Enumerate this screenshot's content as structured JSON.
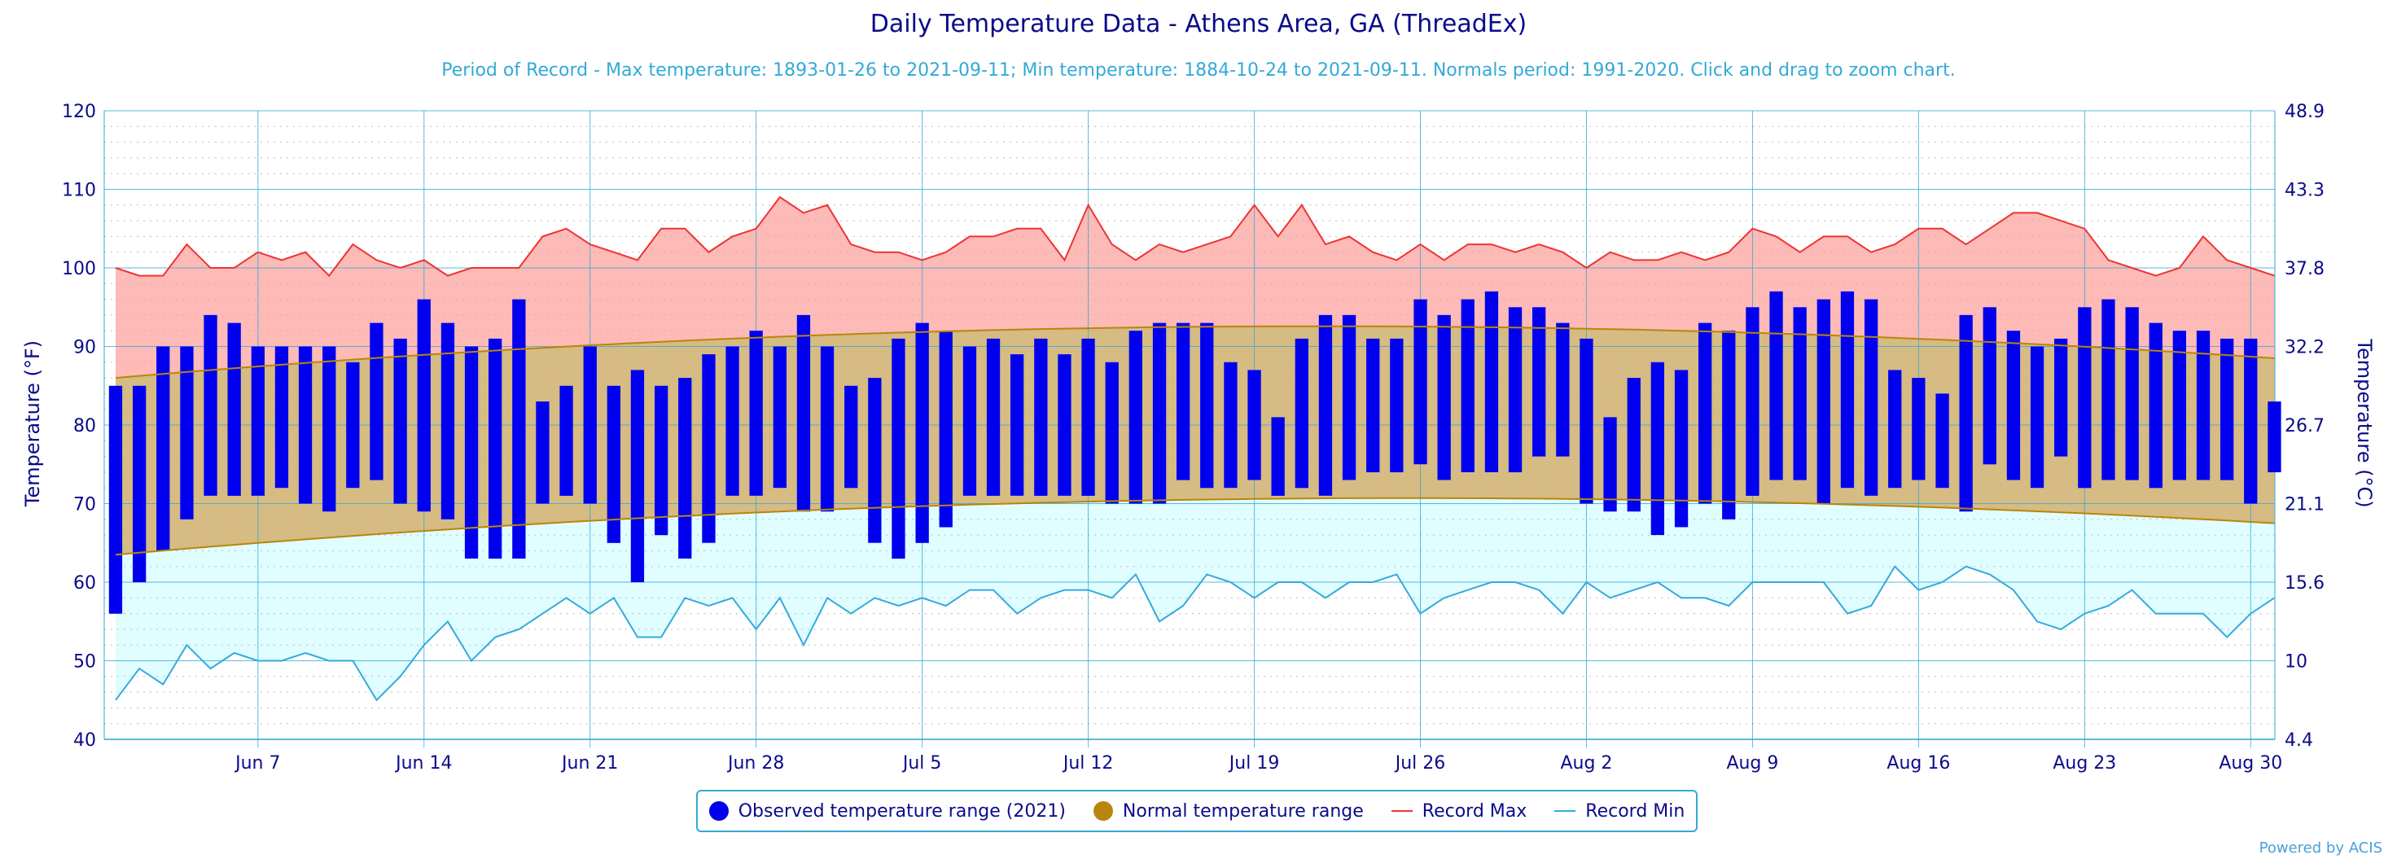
{
  "chart_data": {
    "type": "bar",
    "title": "Daily Temperature Data - Athens Area, GA (ThreadEx)",
    "subtitle": "Period of Record - Max temperature: 1893-01-26 to 2021-09-11; Min temperature: 1884-10-24 to 2021-09-11. Normals period: 1991-2020. Click and drag to zoom chart.",
    "ylabel": "Temperature (°F)",
    "ylabel_right": "Temperature (°C)",
    "ylim": [
      40,
      120
    ],
    "yticks": [
      40,
      50,
      60,
      70,
      80,
      90,
      100,
      110,
      120
    ],
    "yticks_right": [
      "4.4",
      "10",
      "15.6",
      "21.1",
      "26.7",
      "32.2",
      "37.8",
      "43.3",
      "48.9"
    ],
    "x_start": "2021-06-01",
    "x_end": "2021-08-31",
    "xticks": [
      "Jun 7",
      "Jun 14",
      "Jun 21",
      "Jun 28",
      "Jul 5",
      "Jul 12",
      "Jul 19",
      "Jul 26",
      "Aug 2",
      "Aug 9",
      "Aug 16",
      "Aug 23",
      "Aug 30"
    ],
    "xtick_dates": [
      "2021-06-07",
      "2021-06-14",
      "2021-06-21",
      "2021-06-28",
      "2021-07-05",
      "2021-07-12",
      "2021-07-19",
      "2021-07-26",
      "2021-08-02",
      "2021-08-09",
      "2021-08-16",
      "2021-08-23",
      "2021-08-30"
    ],
    "grid": true,
    "legend_position": "bottom-center",
    "series": [
      {
        "name": "Observed temperature range (2021)",
        "color": "#0000ee",
        "high": [
          85,
          85,
          90,
          90,
          94,
          93,
          90,
          90,
          90,
          90,
          88,
          93,
          91,
          96,
          93,
          90,
          91,
          96,
          83,
          85,
          90,
          85,
          87,
          85,
          86,
          89,
          90,
          92,
          90,
          94,
          90,
          85,
          86,
          91,
          93,
          92,
          90,
          91,
          89,
          91,
          89,
          91,
          88,
          92,
          93,
          93,
          93,
          88,
          87,
          81,
          91,
          94,
          94,
          91,
          91,
          96,
          94,
          96,
          97,
          95,
          95,
          93,
          91,
          81,
          86,
          88,
          87,
          93,
          92,
          95,
          97,
          95,
          96,
          97,
          96,
          87,
          86,
          84,
          94,
          95,
          92,
          90,
          91,
          95,
          96,
          95,
          93,
          92,
          92,
          91,
          91,
          83
        ],
        "low": [
          56,
          60,
          64,
          68,
          71,
          71,
          71,
          72,
          70,
          69,
          72,
          73,
          70,
          69,
          68,
          63,
          63,
          63,
          70,
          71,
          70,
          65,
          60,
          66,
          63,
          65,
          71,
          71,
          72,
          69,
          69,
          72,
          65,
          63,
          65,
          67,
          71,
          71,
          71,
          71,
          71,
          71,
          70,
          70,
          70,
          73,
          72,
          72,
          73,
          71,
          72,
          71,
          73,
          74,
          74,
          75,
          73,
          74,
          74,
          74,
          76,
          76,
          70,
          69,
          69,
          66,
          67,
          70,
          68,
          71,
          73,
          73,
          70,
          72,
          71,
          72,
          73,
          72,
          69,
          75,
          73,
          72,
          76,
          72,
          73,
          73,
          72,
          73,
          73,
          73,
          70,
          74
        ]
      },
      {
        "name": "Normal temperature range",
        "color": "#b8860b",
        "high_range": [
          86.0,
          92.5,
          88.5
        ],
        "low_range": [
          63.5,
          70.5,
          67.5
        ]
      },
      {
        "name": "Record Max",
        "color": "#ee3333",
        "values": [
          100,
          99,
          99,
          103,
          100,
          100,
          102,
          101,
          102,
          99,
          103,
          101,
          100,
          101,
          99,
          100,
          100,
          100,
          104,
          105,
          103,
          102,
          101,
          105,
          105,
          102,
          104,
          105,
          109,
          107,
          108,
          103,
          102,
          102,
          101,
          102,
          104,
          104,
          105,
          105,
          101,
          108,
          103,
          101,
          103,
          102,
          103,
          104,
          108,
          104,
          108,
          103,
          104,
          102,
          101,
          103,
          101,
          103,
          103,
          102,
          103,
          102,
          100,
          102,
          101,
          101,
          102,
          101,
          102,
          105,
          104,
          102,
          104,
          104,
          102,
          103,
          105,
          105,
          103,
          105,
          107,
          107,
          106,
          105,
          101,
          100,
          99,
          100,
          104,
          101,
          100,
          99
        ]
      },
      {
        "name": "Record Min",
        "color": "#33aadd",
        "values": [
          45,
          49,
          47,
          52,
          49,
          51,
          50,
          50,
          51,
          50,
          50,
          45,
          48,
          52,
          55,
          50,
          53,
          54,
          56,
          58,
          56,
          58,
          53,
          53,
          58,
          57,
          58,
          54,
          58,
          52,
          58,
          56,
          58,
          57,
          58,
          57,
          59,
          59,
          56,
          58,
          59,
          59,
          58,
          61,
          55,
          57,
          61,
          60,
          58,
          60,
          60,
          58,
          60,
          60,
          61,
          56,
          58,
          59,
          60,
          60,
          59,
          56,
          60,
          58,
          59,
          60,
          58,
          58,
          57,
          60,
          60,
          60,
          60,
          56,
          57,
          62,
          59,
          60,
          62,
          61,
          59,
          55,
          54,
          56,
          57,
          59,
          56,
          56,
          56,
          53,
          56,
          58
        ]
      }
    ]
  },
  "legend": {
    "observed": "Observed temperature range (2021)",
    "normal": "Normal temperature range",
    "record_max": "Record Max",
    "record_min": "Record Min"
  },
  "credits": "Powered by ACIS",
  "colors": {
    "title": "#0b0b8a",
    "subtitle": "#33a9d8",
    "axis": "#33a9d8",
    "observed": "#0000ee",
    "normal_fill": "#d6bb82",
    "normal_line": "#b8860b",
    "record_max_fill": "#fdbab6",
    "record_max_line": "#ee3333",
    "record_min_fill": "#e0fdff",
    "record_min_line": "#33aadd"
  }
}
